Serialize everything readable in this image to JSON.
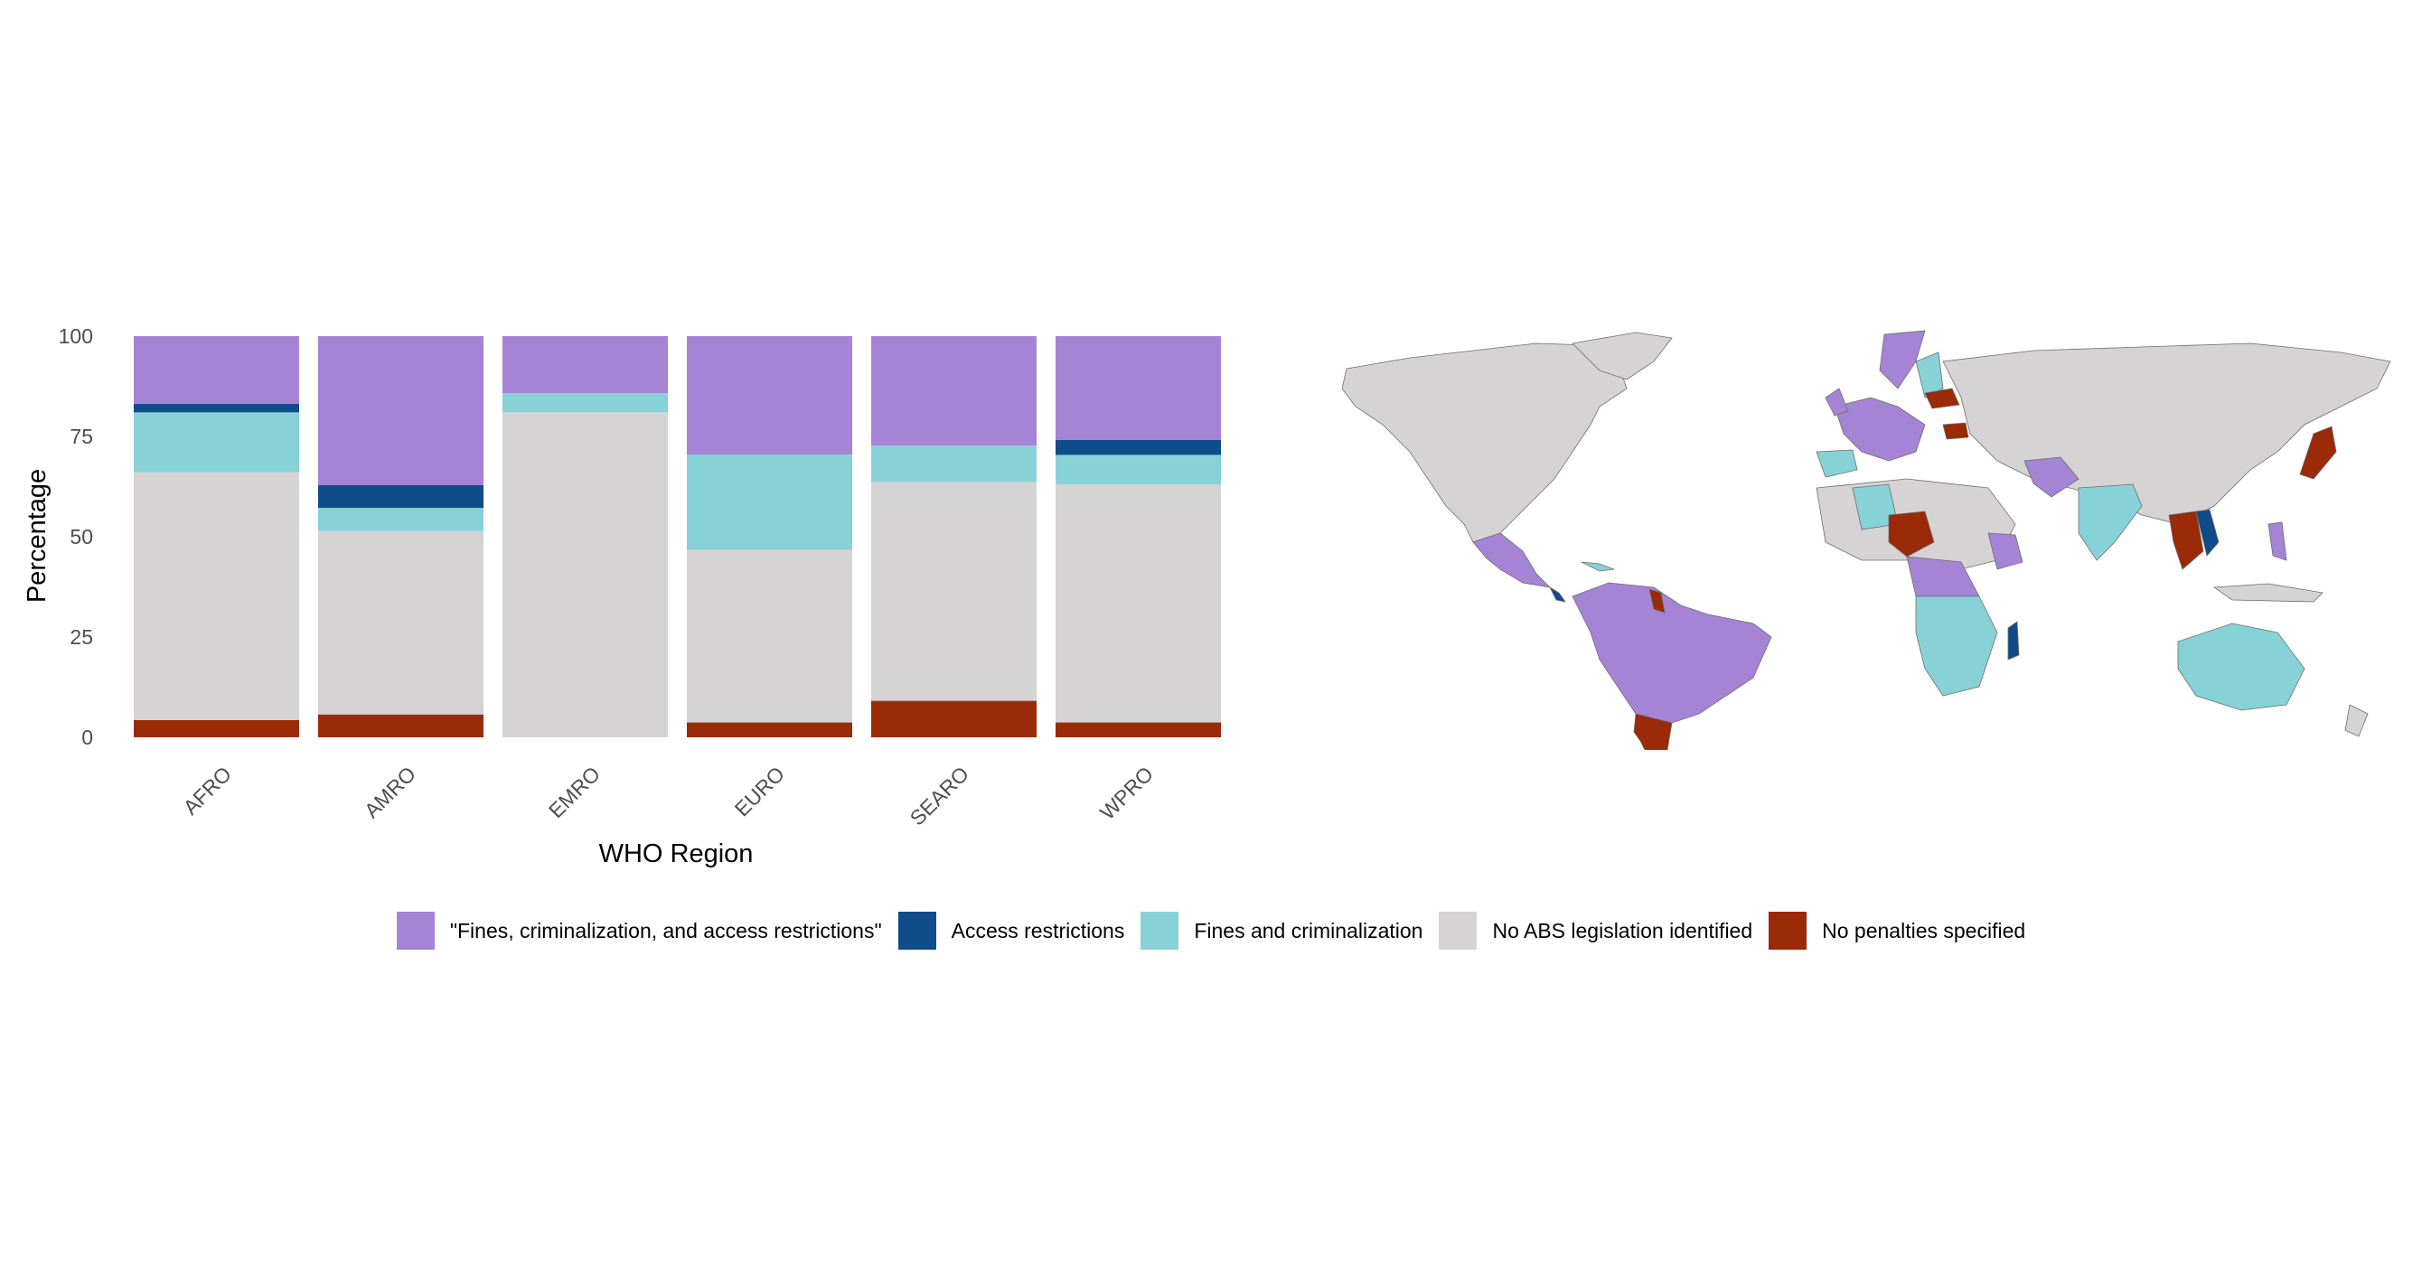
{
  "chart_data": [
    {
      "type": "bar",
      "stacked": true,
      "title": "",
      "xlabel": "WHO Region",
      "ylabel": "Percentage",
      "ylim": [
        0,
        100
      ],
      "yticks": [
        "0",
        "25",
        "50",
        "75",
        "100"
      ],
      "grid": false,
      "categories": [
        "AFRO",
        "AMRO",
        "EMRO",
        "EURO",
        "SEARO",
        "WPRO"
      ],
      "series": [
        {
          "name": "No penalties specified",
          "color": "#9a2a08",
          "values": [
            4.3,
            5.7,
            0,
            3.7,
            9.1,
            3.7
          ]
        },
        {
          "name": "No ABS legislation identified",
          "color": "#d6d3d4",
          "values": [
            61.8,
            45.7,
            81.0,
            43.0,
            54.5,
            59.3
          ]
        },
        {
          "name": "Fines and criminalization",
          "color": "#87d2d6",
          "values": [
            14.9,
            5.8,
            4.8,
            23.8,
            9.1,
            7.4
          ]
        },
        {
          "name": "Access restrictions",
          "color": "#104b8a",
          "values": [
            2.1,
            5.7,
            0,
            0,
            0,
            3.7
          ]
        },
        {
          "name": "\"Fines, criminalization, and access restrictions\"",
          "color": "#a584d6",
          "values": [
            16.9,
            37.1,
            14.2,
            29.5,
            27.3,
            25.9
          ]
        }
      ]
    },
    {
      "type": "map",
      "title": "",
      "fill_legend": "shared with bar chart",
      "background_country_color": "#d6d3d4",
      "border_color": "#6e6e6e"
    }
  ],
  "legend": {
    "position": "bottom",
    "items": [
      {
        "label": "\"Fines, criminalization, and access restrictions\"",
        "color": "#a584d6"
      },
      {
        "label": "Access restrictions",
        "color": "#104b8a"
      },
      {
        "label": "Fines and criminalization",
        "color": "#87d2d6"
      },
      {
        "label": "No ABS legislation identified",
        "color": "#d6d3d4"
      },
      {
        "label": "No penalties specified",
        "color": "#9a2a08"
      }
    ]
  }
}
